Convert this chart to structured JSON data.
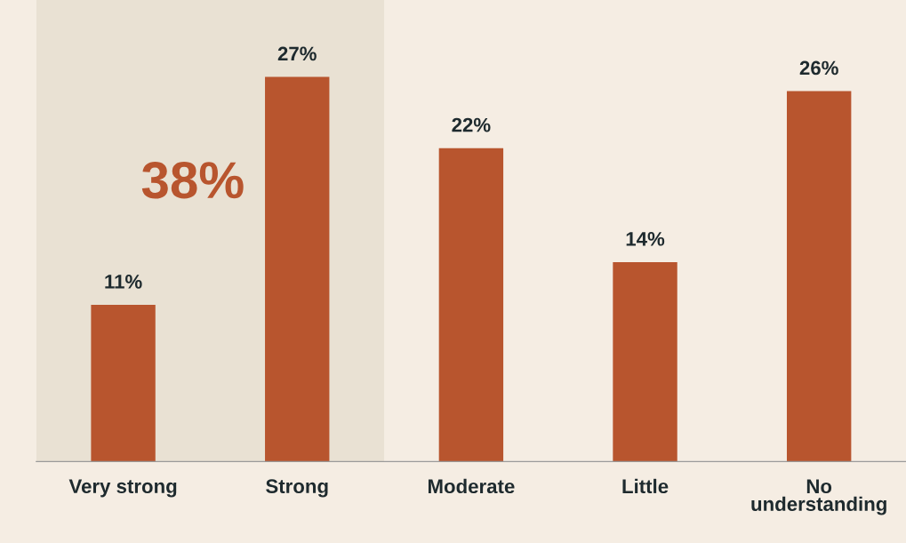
{
  "chart_data": {
    "type": "bar",
    "categories": [
      "Very strong",
      "Strong",
      "Moderate",
      "Little",
      "No\nunderstanding"
    ],
    "values": [
      11,
      27,
      22,
      14,
      26
    ],
    "value_labels": [
      "11%",
      "27%",
      "22%",
      "14%",
      "26%"
    ],
    "color": "#b8552e",
    "bands": [
      {
        "axis": "x",
        "from": "Very strong",
        "to": "Strong",
        "label": "38%",
        "color": "#e9e1d3"
      }
    ],
    "grid": false,
    "legend": false
  }
}
